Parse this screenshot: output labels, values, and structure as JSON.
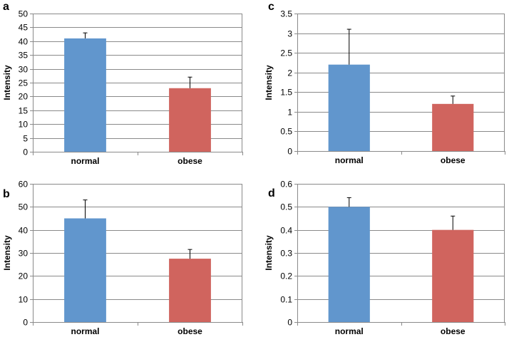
{
  "chart_data": [
    {
      "type": "bar",
      "panel_label": "a",
      "categories": [
        "normal",
        "obese"
      ],
      "values": [
        41,
        23
      ],
      "errors": [
        2,
        4
      ],
      "ylabel": "Intensity",
      "ylim": [
        0,
        50
      ],
      "ytick_step": 5,
      "yticks": [
        "0",
        "5",
        "10",
        "15",
        "20",
        "25",
        "30",
        "35",
        "40",
        "45",
        "50"
      ],
      "colors": [
        "#6196cd",
        "#d0645e"
      ],
      "grid": true
    },
    {
      "type": "bar",
      "panel_label": "c",
      "categories": [
        "normal",
        "obese"
      ],
      "values": [
        2.2,
        1.2
      ],
      "errors": [
        0.9,
        0.2
      ],
      "ylabel": "Intensity",
      "ylim": [
        0,
        3.5
      ],
      "ytick_step": 0.5,
      "yticks": [
        "0",
        "0.5",
        "1",
        "1.5",
        "2",
        "2.5",
        "3",
        "3.5"
      ],
      "colors": [
        "#6196cd",
        "#d0645e"
      ],
      "grid": true
    },
    {
      "type": "bar",
      "panel_label": "b",
      "categories": [
        "normal",
        "obese"
      ],
      "values": [
        45,
        27.5
      ],
      "errors": [
        8,
        4
      ],
      "ylabel": "Intensity",
      "ylim": [
        0,
        60
      ],
      "ytick_step": 10,
      "yticks": [
        "0",
        "10",
        "20",
        "30",
        "40",
        "50",
        "60"
      ],
      "colors": [
        "#6196cd",
        "#d0645e"
      ],
      "grid": true
    },
    {
      "type": "bar",
      "panel_label": "d",
      "categories": [
        "normal",
        "obese"
      ],
      "values": [
        0.5,
        0.4
      ],
      "errors": [
        0.04,
        0.06
      ],
      "ylabel": "Intensity",
      "ylim": [
        0,
        0.6
      ],
      "ytick_step": 0.1,
      "yticks": [
        "0",
        "0.1",
        "0.2",
        "0.3",
        "0.4",
        "0.5",
        "0.6"
      ],
      "colors": [
        "#6196cd",
        "#d0645e"
      ],
      "grid": true
    }
  ]
}
